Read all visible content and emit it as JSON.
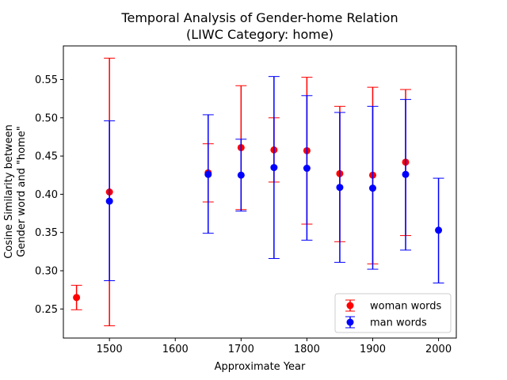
{
  "chart_data": {
    "type": "scatter",
    "title_line1": "Temporal Analysis of Gender-home Relation",
    "title_line2": "(LIWC Category: home)",
    "xlabel": "Approximate Year",
    "ylabel_line1": "Cosine Similarity between",
    "ylabel_line2": "Gender word and \"home\"",
    "xlim": [
      1430,
      2027
    ],
    "ylim": [
      0.212,
      0.594
    ],
    "x_ticks": [
      1500,
      1600,
      1700,
      1800,
      1900,
      2000
    ],
    "y_ticks": [
      0.25,
      0.3,
      0.35,
      0.4,
      0.45,
      0.5,
      0.55
    ],
    "y_tick_labels": [
      "0.25",
      "0.30",
      "0.35",
      "0.40",
      "0.45",
      "0.50",
      "0.55"
    ],
    "legend_position": "lower right",
    "series": [
      {
        "name": "woman words",
        "color": "#ff0000",
        "points": [
          {
            "x": 1450,
            "y": 0.265,
            "err_low": 0.249,
            "err_high": 0.281
          },
          {
            "x": 1500,
            "y": 0.403,
            "err_low": 0.228,
            "err_high": 0.578
          },
          {
            "x": 1650,
            "y": 0.428,
            "err_low": 0.39,
            "err_high": 0.466
          },
          {
            "x": 1700,
            "y": 0.461,
            "err_low": 0.38,
            "err_high": 0.542
          },
          {
            "x": 1750,
            "y": 0.458,
            "err_low": 0.416,
            "err_high": 0.5
          },
          {
            "x": 1800,
            "y": 0.457,
            "err_low": 0.361,
            "err_high": 0.553
          },
          {
            "x": 1850,
            "y": 0.427,
            "err_low": 0.338,
            "err_high": 0.515
          },
          {
            "x": 1900,
            "y": 0.425,
            "err_low": 0.309,
            "err_high": 0.54
          },
          {
            "x": 1950,
            "y": 0.442,
            "err_low": 0.346,
            "err_high": 0.537
          }
        ]
      },
      {
        "name": "man words",
        "color": "#0000ff",
        "points": [
          {
            "x": 1500,
            "y": 0.391,
            "err_low": 0.287,
            "err_high": 0.496
          },
          {
            "x": 1650,
            "y": 0.426,
            "err_low": 0.349,
            "err_high": 0.504
          },
          {
            "x": 1700,
            "y": 0.425,
            "err_low": 0.378,
            "err_high": 0.472
          },
          {
            "x": 1750,
            "y": 0.435,
            "err_low": 0.316,
            "err_high": 0.554
          },
          {
            "x": 1800,
            "y": 0.434,
            "err_low": 0.34,
            "err_high": 0.529
          },
          {
            "x": 1850,
            "y": 0.409,
            "err_low": 0.311,
            "err_high": 0.507
          },
          {
            "x": 1900,
            "y": 0.408,
            "err_low": 0.302,
            "err_high": 0.515
          },
          {
            "x": 1950,
            "y": 0.426,
            "err_low": 0.327,
            "err_high": 0.524
          },
          {
            "x": 2000,
            "y": 0.353,
            "err_low": 0.284,
            "err_high": 0.421
          }
        ]
      }
    ]
  }
}
